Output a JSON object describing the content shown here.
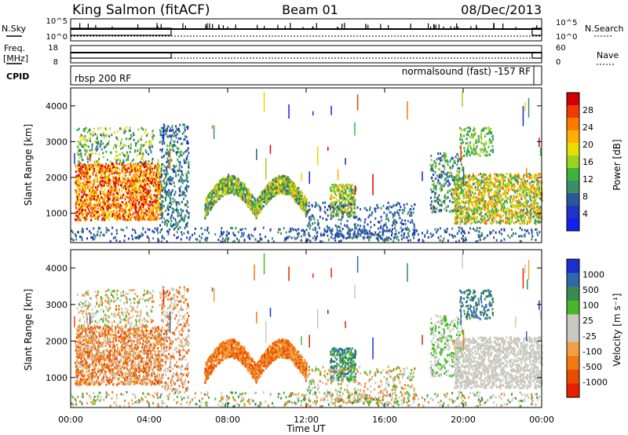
{
  "header": {
    "station": "King Salmon (fitACF)",
    "beam": "Beam 01",
    "date": "08/Dec/2013"
  },
  "top_panels": {
    "nsky_label": "N.Sky",
    "nsky_ticks": [
      "10^5",
      "10^0"
    ],
    "nsearch_label": "N.Search",
    "nsearch_ticks": [
      "10^5",
      "10^0"
    ],
    "freq_label_1": "Freq.",
    "freq_label_2": "[MHz]",
    "freq_ticks": [
      "18",
      "8"
    ],
    "nave_label": "Nave",
    "nave_ticks": [
      "60",
      "0"
    ],
    "cpid_label": "CPID",
    "cpid_left": "rbsp 200 RF",
    "cpid_right": "normalsound (fast) -157 RF"
  },
  "colorbars": {
    "power": {
      "label": "Power [dB]",
      "ticks": [
        "28",
        "24",
        "20",
        "16",
        "12",
        "8",
        "4"
      ],
      "colors": [
        "#d40000",
        "#f03c00",
        "#ff7a00",
        "#ffb000",
        "#e8dc00",
        "#9cd220",
        "#3cb43c",
        "#3a8f6a",
        "#2a5a96",
        "#2233c8",
        "#1020ee"
      ]
    },
    "velocity": {
      "label": "Velocity [m s⁻¹]",
      "ticks": [
        "1000",
        "500",
        "100",
        "25",
        "-25",
        "-100",
        "-500",
        "-1000"
      ],
      "colors": [
        "#1a2fd0",
        "#2f6aa8",
        "#3a8a50",
        "#46b82a",
        "#c8c8c0",
        "#c8c8c0",
        "#f0a040",
        "#f07a10",
        "#e84a00",
        "#e82000"
      ]
    }
  },
  "chart_data": {
    "type": "heatmap",
    "title": "King Salmon (fitACF)",
    "panels": [
      {
        "name": "power",
        "ylabel": "Slant Range [km]",
        "clabel": "Power [dB]",
        "crange": [
          0,
          30
        ]
      },
      {
        "name": "velocity",
        "ylabel": "Slant Range [km]",
        "clabel": "Velocity [m s⁻¹]",
        "crange": [
          -1000,
          1000
        ]
      }
    ],
    "xlabel": "Time UT",
    "xticks": [
      "00:00",
      "04:00",
      "08:00",
      "12:00",
      "16:00",
      "20:00",
      "00:00"
    ],
    "xlim_hours": [
      0,
      24
    ],
    "yticks": [
      "1000",
      "2000",
      "3000",
      "4000"
    ],
    "ylim_km": [
      180,
      4500
    ],
    "scatter_regions": [
      {
        "t": [
          0.2,
          4.5
        ],
        "r": [
          800,
          2400
        ],
        "power": "high",
        "velocity": "mixed -100 to -500"
      },
      {
        "t": [
          4.5,
          6.0
        ],
        "r": [
          600,
          3500
        ],
        "power": "low",
        "velocity": "mixed"
      },
      {
        "t": [
          6.8,
          12.0
        ],
        "r": [
          700,
          2300
        ],
        "power": "moderate",
        "velocity": "-100 to -500"
      },
      {
        "t": [
          13.2,
          14.5
        ],
        "r": [
          900,
          1800
        ],
        "power": "moderate",
        "velocity": "25 to 500"
      },
      {
        "t": [
          18.5,
          24.0
        ],
        "r": [
          700,
          3200
        ],
        "power": "moderate-high",
        "velocity": "-25 to 25"
      }
    ]
  }
}
